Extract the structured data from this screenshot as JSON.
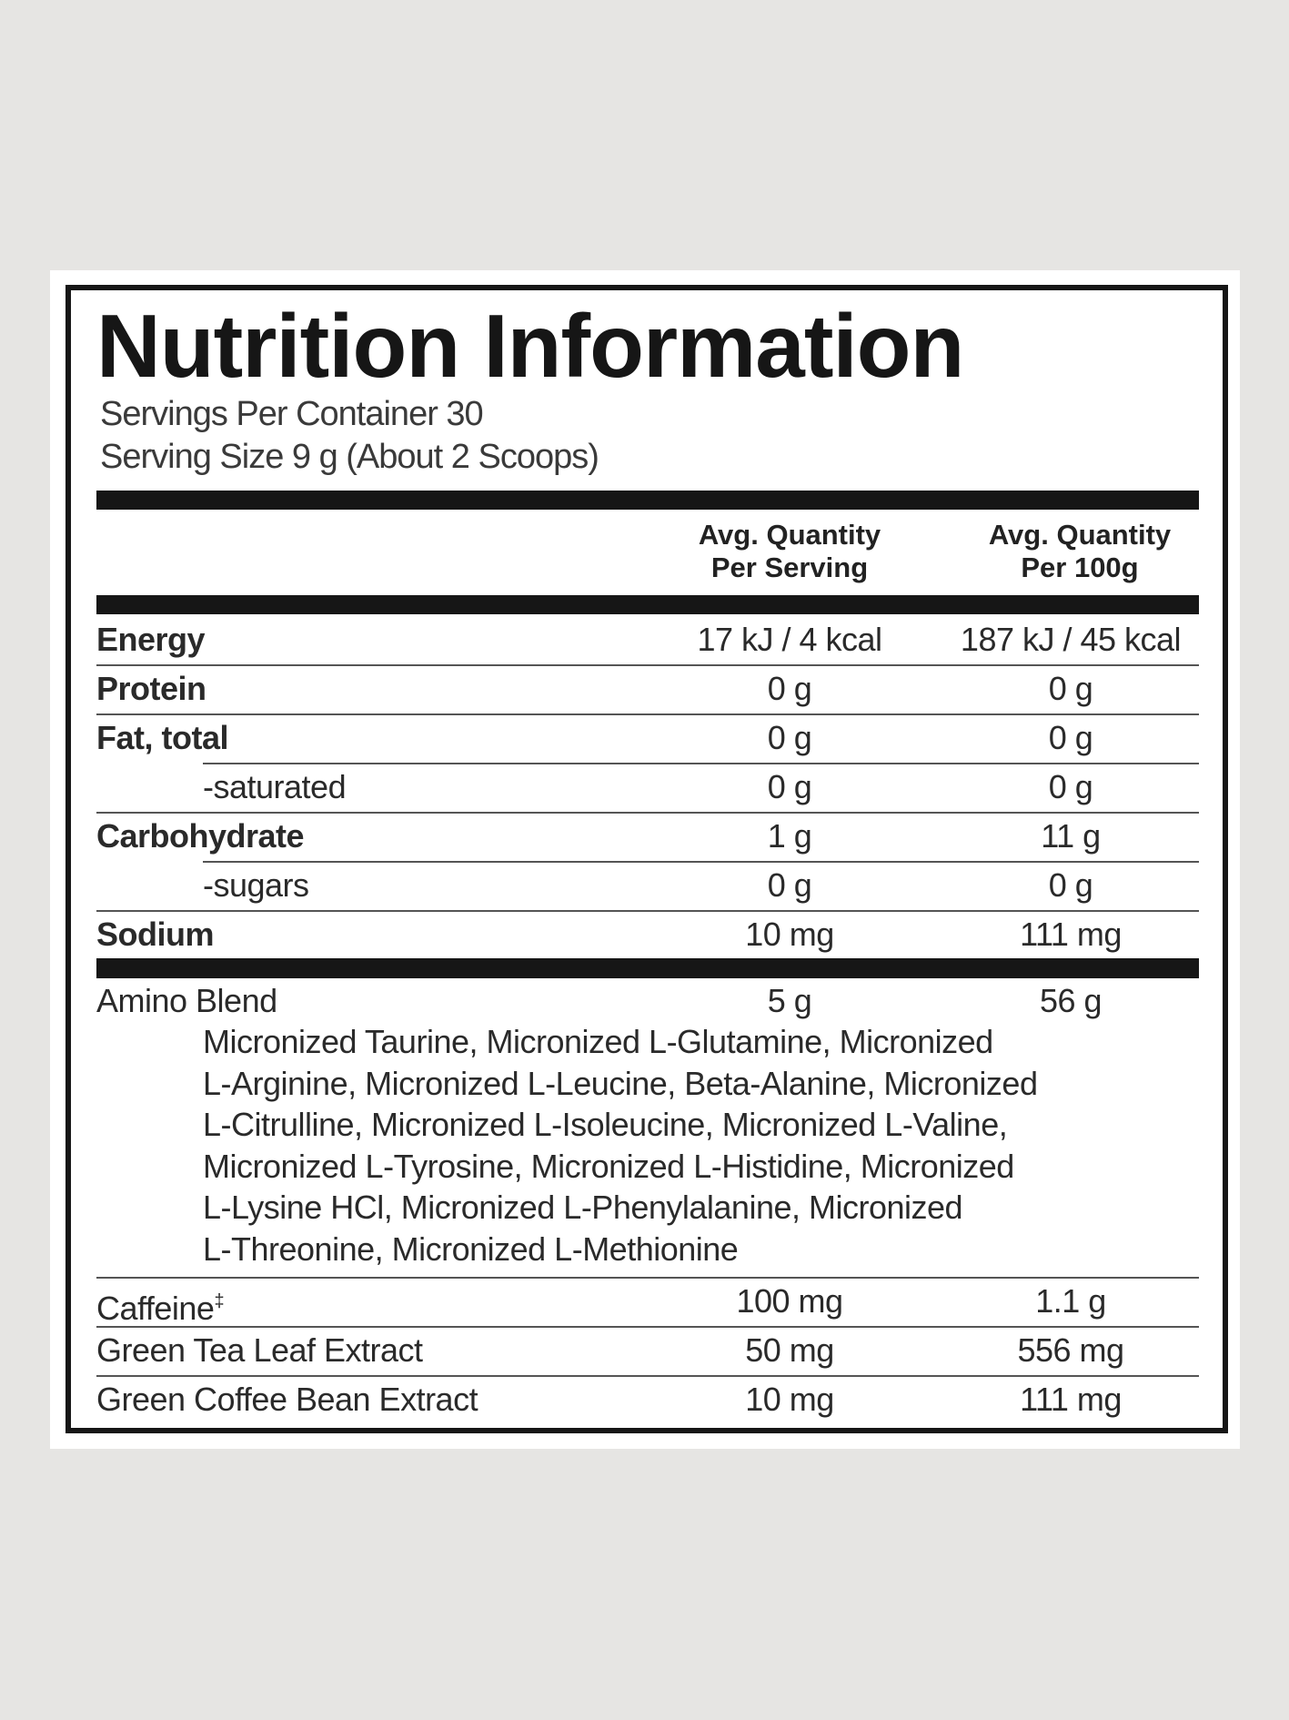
{
  "colors": {
    "background": "#e6e5e3",
    "panel": "#ffffff",
    "ink": "#161616"
  },
  "title": "Nutrition Information",
  "servings_per_container": "Servings Per Container 30",
  "serving_size": "Serving Size 9 g (About 2 Scoops)",
  "columns": {
    "per_serving": [
      "Avg. Quantity",
      "Per Serving"
    ],
    "per_100g": [
      "Avg. Quantity",
      "Per 100g"
    ]
  },
  "nutrients": [
    {
      "label": "Energy",
      "per_serving": "17 kJ / 4 kcal",
      "per_100g": "187 kJ / 45 kcal"
    },
    {
      "label": "Protein",
      "per_serving": "0 g",
      "per_100g": "0 g"
    },
    {
      "label": "Fat, total",
      "per_serving": "0 g",
      "per_100g": "0 g"
    },
    {
      "label": "-saturated",
      "per_serving": "0 g",
      "per_100g": "0 g"
    },
    {
      "label": "Carbohydrate",
      "per_serving": "1 g",
      "per_100g": "11 g"
    },
    {
      "label": "-sugars",
      "per_serving": "0 g",
      "per_100g": "0 g"
    },
    {
      "label": "Sodium",
      "per_serving": "10 mg",
      "per_100g": "111 mg"
    }
  ],
  "amino_blend": {
    "label": "Amino Blend",
    "per_serving": "5 g",
    "per_100g": "56 g",
    "ingredient_lines": [
      "Micronized Taurine, Micronized L-Glutamine, Micronized",
      "L-Arginine, Micronized L-Leucine, Beta-Alanine, Micronized",
      "L-Citrulline, Micronized L-Isoleucine, Micronized L-Valine,",
      "Micronized L-Tyrosine, Micronized L-Histidine, Micronized",
      "L-Lysine HCl, Micronized L-Phenylalanine, Micronized",
      "L-Threonine, Micronized L-Methionine"
    ]
  },
  "others": [
    {
      "label": "Caffeine",
      "mark": "‡",
      "per_serving": "100 mg",
      "per_100g": "1.1 g"
    },
    {
      "label": "Green Tea Leaf Extract",
      "per_serving": "50 mg",
      "per_100g": "556 mg"
    },
    {
      "label": "Green Coffee Bean Extract",
      "per_serving": "10 mg",
      "per_100g": "111 mg"
    }
  ]
}
